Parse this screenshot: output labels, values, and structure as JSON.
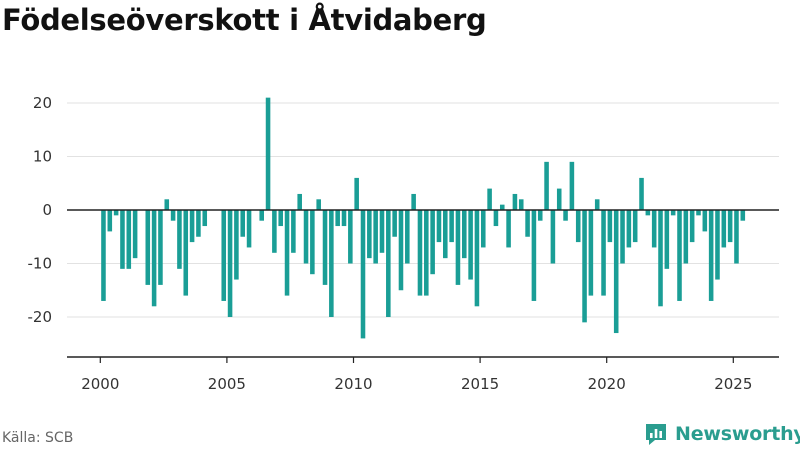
{
  "title": "Födelseöverskott i Åtvidaberg",
  "source": "Källa: SCB",
  "brand": "Newsworthy",
  "colors": {
    "bar": "#1a9e96",
    "grid": "#e2e2e2",
    "axis": "#222222",
    "brand": "#2a9d8f"
  },
  "icons": {
    "logo": "newsworthy-logo-icon"
  },
  "chart_data": {
    "type": "bar",
    "xlim": [
      1999.5,
      2025.9
    ],
    "ylim": [
      -27,
      24
    ],
    "y_ticks": [
      20,
      10,
      0,
      -10,
      -20
    ],
    "x_ticks": [
      2000,
      2005,
      2010,
      2015,
      2020,
      2025
    ],
    "grid": true,
    "legend": "none",
    "start": "2000-Q1",
    "values": [
      -17,
      -4,
      -1,
      -11,
      -11,
      -9,
      0,
      -14,
      -18,
      -14,
      2,
      -2,
      -11,
      -16,
      -6,
      -5,
      -3,
      0,
      0,
      -17,
      -20,
      -13,
      -5,
      -7,
      0,
      -2,
      21,
      -8,
      -3,
      -16,
      -8,
      3,
      -10,
      -12,
      2,
      -14,
      -20,
      -3,
      -3,
      -10,
      6,
      -24,
      -9,
      -10,
      -8,
      -20,
      -5,
      -15,
      -10,
      3,
      -16,
      -16,
      -12,
      -6,
      -9,
      -6,
      -14,
      -9,
      -13,
      -18,
      -7,
      4,
      -3,
      1,
      -7,
      3,
      2,
      -5,
      -17,
      -2,
      9,
      -10,
      4,
      -2,
      9,
      -6,
      -21,
      -16,
      2,
      -16,
      -6,
      -23,
      -10,
      -7,
      -6,
      6,
      -1,
      -7,
      -18,
      -11,
      -1,
      -17,
      -10,
      -6,
      -1,
      -4,
      -17,
      -13,
      -7,
      -6,
      -10,
      -2
    ]
  }
}
